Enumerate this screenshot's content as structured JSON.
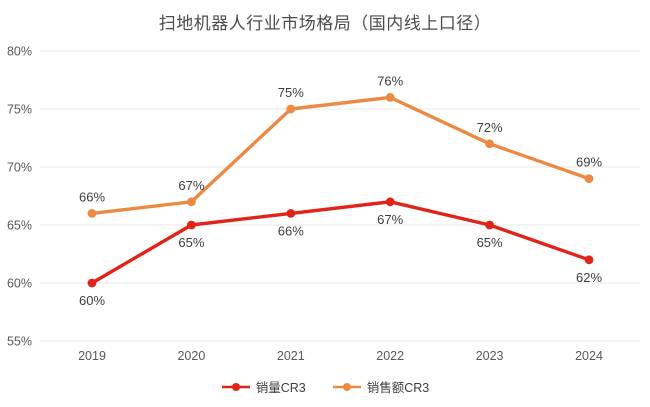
{
  "title": "扫地机器人行业市场格局（国内线上口径）",
  "chart_data": {
    "type": "line",
    "title": "扫地机器人行业市场格局（国内线上口径）",
    "categories": [
      "2019",
      "2020",
      "2021",
      "2022",
      "2023",
      "2024"
    ],
    "series": [
      {
        "name": "销量CR3",
        "color": "#e2231a",
        "values": [
          60,
          65,
          66,
          67,
          65,
          62
        ],
        "label_position": "below"
      },
      {
        "name": "销售额CR3",
        "color": "#ec8a44",
        "values": [
          66,
          67,
          75,
          76,
          72,
          69
        ],
        "label_position": "above"
      }
    ],
    "ylim": [
      55,
      80
    ],
    "ytick_step": 5,
    "ytick_suffix": "%",
    "xlabel": "",
    "ylabel": "",
    "grid": true,
    "legend_position": "bottom"
  },
  "colors": {
    "background": "#ffffff",
    "gridline": "#eaeaea",
    "axis_text": "#595959",
    "data_label": "#3d3d3d",
    "title_text": "#4c4c4c"
  }
}
